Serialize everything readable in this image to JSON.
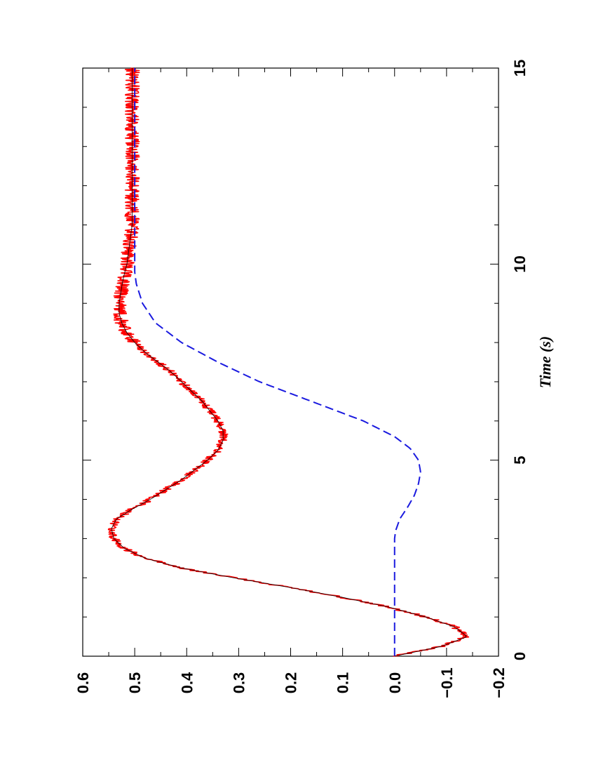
{
  "chart_data": {
    "type": "line",
    "orientation": "rotated 90° counter-clockwise (page in landscape)",
    "title": "",
    "xlabel": "Time (s)",
    "ylabel": "",
    "xlim": [
      0,
      15
    ],
    "ylim": [
      -0.2,
      0.6
    ],
    "x_ticks": [
      0,
      5,
      10,
      15
    ],
    "x_tick_labels": [
      "0",
      "5",
      "10",
      "15"
    ],
    "y_ticks": [
      -0.2,
      -0.1,
      0.0,
      0.1,
      0.2,
      0.3,
      0.4,
      0.5,
      0.6
    ],
    "y_tick_labels": [
      "−0.2",
      "−0.1",
      "0.0",
      "0.1",
      "0.2",
      "0.3",
      "0.4",
      "0.5",
      "0.6"
    ],
    "grid": false,
    "legend": "none",
    "series": [
      {
        "style": "solid-noisy",
        "color": "#ff0000",
        "x": [
          0,
          0.25,
          0.5,
          0.75,
          1.0,
          1.25,
          1.5,
          1.75,
          2.0,
          2.25,
          2.5,
          2.75,
          3.0,
          3.25,
          3.5,
          3.75,
          4.0,
          4.25,
          4.5,
          4.75,
          5.0,
          5.25,
          5.5,
          5.75,
          6.0,
          6.25,
          6.5,
          6.75,
          7.0,
          7.25,
          7.5,
          7.75,
          8.0,
          8.25,
          8.5,
          8.75,
          9.0,
          9.25,
          9.5,
          9.75,
          10.0,
          10.5,
          11.0,
          11.5,
          12.0,
          12.5,
          13.0,
          13.5,
          14.0,
          14.5,
          15.0
        ],
        "values": [
          0.0,
          -0.09,
          -0.14,
          -0.115,
          -0.06,
          0.01,
          0.1,
          0.2,
          0.31,
          0.41,
          0.48,
          0.52,
          0.54,
          0.545,
          0.535,
          0.505,
          0.47,
          0.44,
          0.41,
          0.385,
          0.36,
          0.34,
          0.33,
          0.33,
          0.34,
          0.355,
          0.37,
          0.39,
          0.41,
          0.43,
          0.455,
          0.48,
          0.5,
          0.515,
          0.525,
          0.53,
          0.53,
          0.527,
          0.524,
          0.52,
          0.515,
          0.51,
          0.505,
          0.505,
          0.505,
          0.505,
          0.505,
          0.505,
          0.505,
          0.505,
          0.505
        ]
      },
      {
        "style": "dashed",
        "color": "#1a1adf",
        "x": [
          0,
          1.0,
          2.0,
          3.0,
          3.2,
          3.5,
          3.8,
          4.1,
          4.4,
          4.7,
          5.0,
          5.3,
          5.6,
          6.0,
          6.5,
          7.0,
          7.5,
          8.0,
          8.5,
          9.0,
          9.5,
          9.8,
          10.0,
          11.0,
          12.0,
          13.0,
          14.0,
          15.0
        ],
        "values": [
          0.0,
          0.0,
          0.0,
          0.0,
          -0.002,
          -0.01,
          -0.025,
          -0.038,
          -0.046,
          -0.05,
          -0.046,
          -0.03,
          0.0,
          0.06,
          0.16,
          0.26,
          0.34,
          0.41,
          0.46,
          0.485,
          0.497,
          0.5,
          0.5,
          0.5,
          0.5,
          0.5,
          0.5,
          0.5
        ]
      },
      {
        "style": "solid-thin",
        "color": "#000000",
        "x": [
          0,
          0.25,
          0.5,
          0.75,
          1.0,
          1.25,
          1.5,
          1.75,
          2.0,
          2.25,
          2.5,
          2.75,
          3.0,
          3.25,
          3.5,
          3.75,
          4.0,
          4.25,
          4.5,
          4.75,
          5.0,
          5.25,
          5.5,
          5.75,
          6.0,
          6.25,
          6.5,
          6.75,
          7.0,
          7.25,
          7.5,
          7.75,
          8.0,
          8.25,
          8.5,
          8.75,
          9.0,
          9.25,
          9.5,
          9.75,
          10.0,
          10.5,
          11.0,
          11.5,
          12.0,
          12.5,
          13.0,
          13.5,
          14.0,
          14.5,
          15.0
        ],
        "values": [
          0.0,
          -0.09,
          -0.14,
          -0.115,
          -0.06,
          0.01,
          0.1,
          0.2,
          0.31,
          0.41,
          0.48,
          0.52,
          0.54,
          0.545,
          0.535,
          0.505,
          0.47,
          0.44,
          0.41,
          0.385,
          0.36,
          0.34,
          0.33,
          0.33,
          0.34,
          0.355,
          0.37,
          0.39,
          0.41,
          0.43,
          0.455,
          0.48,
          0.5,
          0.515,
          0.525,
          0.53,
          0.53,
          0.527,
          0.524,
          0.52,
          0.515,
          0.51,
          0.505,
          0.505,
          0.505,
          0.505,
          0.505,
          0.505,
          0.505,
          0.505,
          0.505
        ]
      }
    ]
  }
}
